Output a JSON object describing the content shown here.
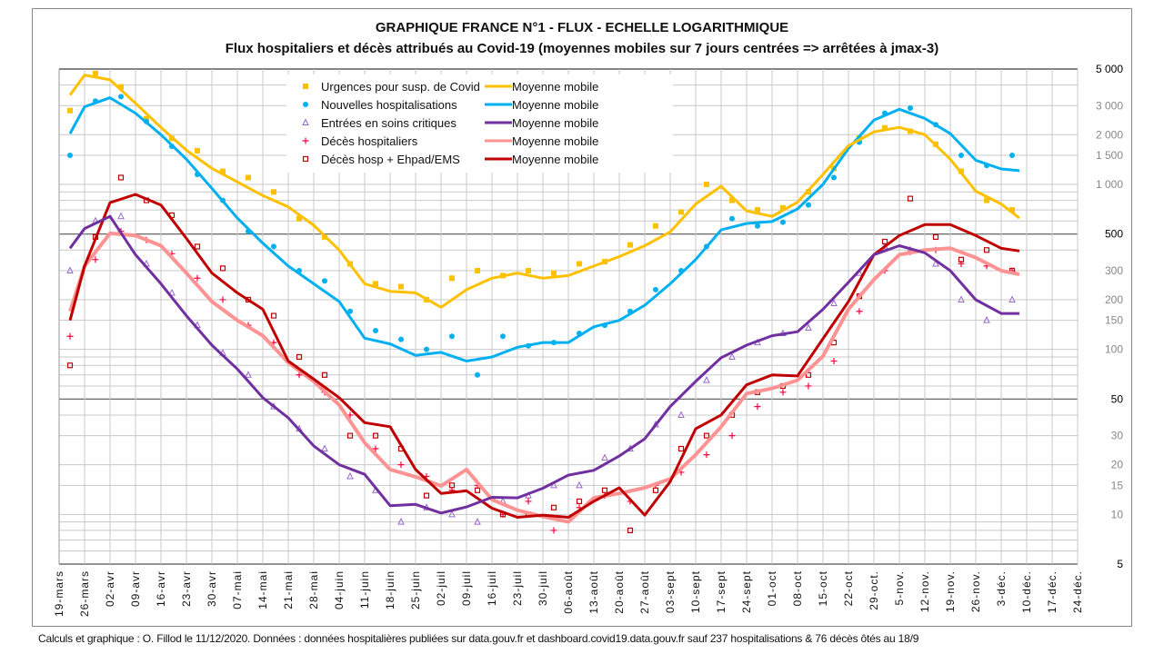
{
  "title": "GRAPHIQUE FRANCE N°1 - FLUX - ECHELLE LOGARITHMIQUE",
  "subtitle": "Flux hospitaliers et décès attribués au Covid-19 (moyennes mobiles sur 7 jours centrées => arrêtées à jmax-3)",
  "footer": "Calculs et graphique : O. Fillod le 11/12/2020.  Données : données hospitalières publiées sur data.gouv.fr et dashboard.covid19.data.gouv.fr sauf 237 hospitalisations & 76 décès ôtés au 18/9",
  "chart_data": {
    "type": "scatter+line",
    "title": "GRAPHIQUE FRANCE N°1 - FLUX - ECHELLE LOGARITHMIQUE",
    "subtitle": "Flux hospitaliers et décès attribués au Covid-19 (moyennes mobiles sur 7 jours centrées => arrêtées à jmax-3)",
    "y_scale": "log",
    "y_axis_side": "right",
    "ylim": [
      5,
      5000
    ],
    "y_ticks": [
      5000,
      3000,
      2000,
      1500,
      1000,
      500,
      300,
      200,
      150,
      100,
      50,
      30,
      20,
      15,
      10,
      5
    ],
    "y_tick_labels": [
      "5 000",
      "3 000",
      "2 000",
      "1 500",
      "1 000",
      "500",
      "300",
      "200",
      "150",
      "100",
      "50",
      "30",
      "20",
      "15",
      "10",
      "5"
    ],
    "xlim": [
      "2020-03-19",
      "2020-12-24"
    ],
    "x_tick_labels": [
      "19-mars",
      "26-mars",
      "02-avr",
      "09-avr",
      "16-avr",
      "23-avr",
      "30-avr",
      "07-mai",
      "14-mai",
      "21-mai",
      "28-mai",
      "04-juin",
      "11-juin",
      "18-juin",
      "25-juin",
      "02-juil",
      "09-juil",
      "16-juil",
      "23-juil",
      "30-juil",
      "06-août",
      "13-août",
      "20-août",
      "27-août",
      "03-sept",
      "10-sept",
      "17-sept",
      "24-sept",
      "01-oct",
      "08-oct",
      "15-oct",
      "22-oct",
      "29-oct.",
      "5-nov.",
      "12-nov.",
      "19-nov.",
      "26-nov.",
      "3-déc.",
      "10-déc.",
      "17-déc.",
      "24-déc."
    ],
    "grid": true,
    "legend_placement": "top-left",
    "raw_dates": [
      "2020-03-22",
      "2020-03-29",
      "2020-04-05",
      "2020-04-12",
      "2020-04-19",
      "2020-04-26",
      "2020-05-03",
      "2020-05-10",
      "2020-05-17",
      "2020-05-24",
      "2020-05-31",
      "2020-06-07",
      "2020-06-14",
      "2020-06-21",
      "2020-06-28",
      "2020-07-05",
      "2020-07-12",
      "2020-07-19",
      "2020-07-26",
      "2020-08-02",
      "2020-08-09",
      "2020-08-16",
      "2020-08-23",
      "2020-08-30",
      "2020-09-06",
      "2020-09-13",
      "2020-09-20",
      "2020-09-27",
      "2020-10-04",
      "2020-10-11",
      "2020-10-18",
      "2020-10-25",
      "2020-11-01",
      "2020-11-08",
      "2020-11-15",
      "2020-11-22",
      "2020-11-29",
      "2020-12-06"
    ],
    "ma_dates": [
      "2020-03-22",
      "2020-03-26",
      "2020-04-02",
      "2020-04-09",
      "2020-04-16",
      "2020-04-23",
      "2020-04-30",
      "2020-05-07",
      "2020-05-14",
      "2020-05-21",
      "2020-05-28",
      "2020-06-04",
      "2020-06-11",
      "2020-06-18",
      "2020-06-25",
      "2020-07-02",
      "2020-07-09",
      "2020-07-16",
      "2020-07-23",
      "2020-07-30",
      "2020-08-06",
      "2020-08-13",
      "2020-08-20",
      "2020-08-27",
      "2020-09-03",
      "2020-09-10",
      "2020-09-17",
      "2020-09-24",
      "2020-10-01",
      "2020-10-08",
      "2020-10-15",
      "2020-10-22",
      "2020-10-29",
      "2020-11-05",
      "2020-11-12",
      "2020-11-19",
      "2020-11-26",
      "2020-12-03",
      "2020-12-08"
    ],
    "series": [
      {
        "name": "Urgences pour susp. de Covid",
        "marker": "square",
        "color": "#FFC000",
        "values": [
          2800,
          4700,
          3900,
          2500,
          1900,
          1600,
          1200,
          1100,
          900,
          620,
          480,
          330,
          250,
          240,
          200,
          270,
          300,
          280,
          300,
          290,
          330,
          340,
          430,
          560,
          680,
          1000,
          800,
          700,
          720,
          900,
          1250,
          1900,
          2200,
          2100,
          1750,
          1200,
          800,
          700
        ],
        "ma_label": "Moyenne mobile",
        "ma_color": "#FFC000",
        "ma": [
          3480,
          4600,
          4300,
          3100,
          2215,
          1610,
          1250,
          1035,
          855,
          730,
          565,
          400,
          250,
          225,
          220,
          180,
          230,
          270,
          290,
          270,
          280,
          320,
          365,
          425,
          515,
          760,
          975,
          690,
          640,
          780,
          1150,
          1715,
          2080,
          2215,
          2000,
          1420,
          910,
          760,
          625
        ]
      },
      {
        "name": "Nouvelles hospitalisations",
        "marker": "circle",
        "color": "#00B0F0",
        "values": [
          1500,
          3200,
          3400,
          2400,
          1700,
          1150,
          800,
          520,
          420,
          300,
          260,
          170,
          130,
          115,
          100,
          120,
          70,
          120,
          105,
          110,
          125,
          140,
          170,
          230,
          300,
          420,
          620,
          560,
          590,
          750,
          1100,
          1800,
          2700,
          2900,
          2300,
          1500,
          1300,
          1500
        ],
        "ma_label": "Moyenne mobile",
        "ma_color": "#00B0F0",
        "ma": [
          2030,
          2950,
          3350,
          2700,
          2000,
          1420,
          945,
          625,
          440,
          320,
          250,
          195,
          117,
          108,
          92,
          96,
          85,
          90,
          103,
          110,
          110,
          137,
          150,
          185,
          250,
          350,
          530,
          580,
          595,
          710,
          1000,
          1650,
          2450,
          2850,
          2510,
          2030,
          1400,
          1240,
          1210
        ]
      },
      {
        "name": "Entrées en soins critiques",
        "marker": "triangle",
        "color": "#9966CC",
        "values": [
          300,
          600,
          640,
          330,
          220,
          140,
          95,
          70,
          45,
          33,
          25,
          17,
          14,
          9,
          11,
          10,
          9,
          12,
          13,
          15,
          15,
          22,
          25,
          35,
          40,
          65,
          90,
          110,
          125,
          135,
          190,
          290,
          420,
          400,
          330,
          200,
          150,
          200
        ],
        "ma_label": "Moyenne mobile",
        "ma_color": "#7030A0",
        "ma": [
          410,
          540,
          640,
          375,
          250,
          160,
          106,
          76,
          51,
          38.5,
          26,
          20,
          17.5,
          11.3,
          11.5,
          10.2,
          11.1,
          12.7,
          12.6,
          14.4,
          17.3,
          18.5,
          22.6,
          28.7,
          45,
          64,
          89,
          106,
          121,
          128,
          175,
          255,
          375,
          425,
          385,
          300,
          200,
          165,
          165
        ]
      },
      {
        "name": "Décès hospitaliers",
        "marker": "plus",
        "color": "#FF0040",
        "values": [
          120,
          350,
          520,
          460,
          380,
          270,
          200,
          140,
          110,
          70,
          55,
          40,
          25,
          20,
          17,
          14,
          15,
          10,
          12,
          8,
          11,
          13,
          12,
          15,
          18,
          23,
          30,
          45,
          55,
          60,
          85,
          170,
          300,
          390,
          400,
          330,
          320,
          300
        ],
        "ma_label": "Moyenne mobile",
        "ma_color": "#FF9393",
        "ma": [
          170,
          320,
          505,
          490,
          425,
          290,
          195,
          150,
          121,
          83,
          64,
          46,
          27.2,
          18.7,
          16.9,
          14.9,
          18.7,
          12.3,
          10.6,
          9.7,
          9,
          12.6,
          13.4,
          14.5,
          16.4,
          23,
          34,
          54,
          58,
          65,
          91,
          175,
          265,
          375,
          400,
          410,
          360,
          300,
          285
        ]
      },
      {
        "name": "Décès hosp + Ehpad/EMS",
        "marker": "hollow-square",
        "color": "#C00000",
        "values": [
          80,
          480,
          1100,
          800,
          650,
          420,
          310,
          200,
          160,
          90,
          70,
          30,
          30,
          25,
          13,
          15,
          14,
          10,
          10,
          11,
          12,
          14,
          8,
          14,
          25,
          30,
          40,
          55,
          60,
          70,
          110,
          210,
          450,
          820,
          480,
          350,
          400,
          300
        ],
        "ma_label": "Moyenne mobile",
        "ma_color": "#C00000",
        "ma": [
          150,
          320,
          775,
          870,
          750,
          470,
          290,
          220,
          175,
          85,
          66,
          51,
          36,
          34,
          18.7,
          13.4,
          13.9,
          10.9,
          9.6,
          9.9,
          9.6,
          12,
          14.5,
          9.9,
          15.8,
          33,
          40,
          61,
          70,
          69,
          116,
          195,
          375,
          490,
          570,
          570,
          490,
          410,
          395
        ]
      }
    ]
  }
}
